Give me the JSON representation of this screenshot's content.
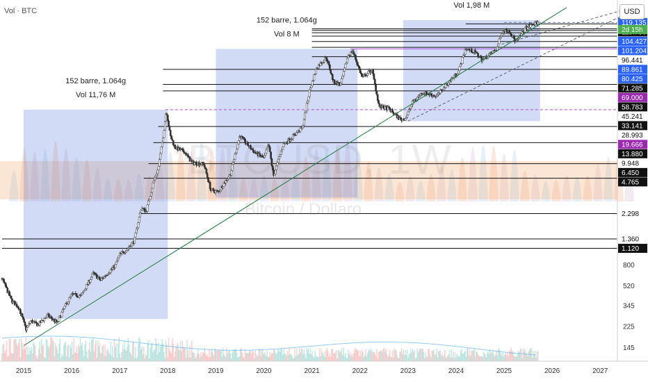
{
  "header": {
    "indicator_label": "Vol · BTC",
    "currency_button": "USD"
  },
  "watermark": {
    "symbol": "BTCUSD, 1W",
    "name": "Bitcoin / Dollaro"
  },
  "colors": {
    "up": "#26a69a",
    "down": "#ef5350",
    "range_box": "#5b7fe0",
    "trendline": "#1e7a3c",
    "magenta": "#b04fd6",
    "price_blue": "#2962ff",
    "price_purple": "#9c27b0",
    "countdown_green": "#4caf50"
  },
  "chart_data": {
    "type": "candlestick",
    "title": "BTCUSD, 1W",
    "subtitle": "Bitcoin / Dollaro",
    "timeframe": "1W",
    "x_range": [
      2014.55,
      2027.5
    ],
    "y_scale": "log",
    "y_range": [
      110,
      160000
    ],
    "x_tick_labels": [
      "2015",
      "2016",
      "2017",
      "2018",
      "2019",
      "2020",
      "2021",
      "2022",
      "2023",
      "2024",
      "2025",
      "2026",
      "2027"
    ],
    "y_tick_labels": [
      {
        "label": "800",
        "value": 800
      },
      {
        "label": "520",
        "value": 520
      },
      {
        "label": "345",
        "value": 345
      },
      {
        "label": "225",
        "value": 225
      },
      {
        "label": "145",
        "value": 145
      }
    ],
    "price_path": [
      [
        2014.55,
        600
      ],
      [
        2014.75,
        380
      ],
      [
        2014.9,
        330
      ],
      [
        2015.05,
        210
      ],
      [
        2015.15,
        250
      ],
      [
        2015.3,
        230
      ],
      [
        2015.5,
        280
      ],
      [
        2015.7,
        240
      ],
      [
        2015.85,
        330
      ],
      [
        2016.0,
        430
      ],
      [
        2016.2,
        420
      ],
      [
        2016.45,
        670
      ],
      [
        2016.6,
        580
      ],
      [
        2016.9,
        780
      ],
      [
        2017.0,
        980
      ],
      [
        2017.15,
        1100
      ],
      [
        2017.3,
        1300
      ],
      [
        2017.45,
        2600
      ],
      [
        2017.55,
        2400
      ],
      [
        2017.7,
        4400
      ],
      [
        2017.8,
        5800
      ],
      [
        2017.9,
        11000
      ],
      [
        2017.97,
        19600
      ],
      [
        2018.05,
        11500
      ],
      [
        2018.15,
        9000
      ],
      [
        2018.35,
        8200
      ],
      [
        2018.5,
        6600
      ],
      [
        2018.75,
        6400
      ],
      [
        2018.9,
        3700
      ],
      [
        2019.05,
        3600
      ],
      [
        2019.3,
        5200
      ],
      [
        2019.5,
        11500
      ],
      [
        2019.6,
        10200
      ],
      [
        2019.8,
        8200
      ],
      [
        2020.0,
        7200
      ],
      [
        2020.1,
        9500
      ],
      [
        2020.2,
        5000
      ],
      [
        2020.4,
        9500
      ],
      [
        2020.6,
        11300
      ],
      [
        2020.8,
        13500
      ],
      [
        2020.95,
        28900
      ],
      [
        2021.1,
        47000
      ],
      [
        2021.3,
        58000
      ],
      [
        2021.45,
        35000
      ],
      [
        2021.6,
        33000
      ],
      [
        2021.75,
        60000
      ],
      [
        2021.85,
        66000
      ],
      [
        2022.05,
        38000
      ],
      [
        2022.25,
        45000
      ],
      [
        2022.4,
        21000
      ],
      [
        2022.6,
        20000
      ],
      [
        2022.85,
        16000
      ],
      [
        2022.95,
        16500
      ],
      [
        2023.1,
        23000
      ],
      [
        2023.3,
        28000
      ],
      [
        2023.6,
        26000
      ],
      [
        2023.85,
        35000
      ],
      [
        2024.05,
        43000
      ],
      [
        2024.2,
        70000
      ],
      [
        2024.4,
        64000
      ],
      [
        2024.55,
        55000
      ],
      [
        2024.85,
        69000
      ],
      [
        2024.95,
        98000
      ],
      [
        2025.1,
        102000
      ],
      [
        2025.25,
        79000
      ],
      [
        2025.45,
        106000
      ],
      [
        2025.6,
        115000
      ],
      [
        2025.72,
        119000
      ]
    ],
    "volume_profile_visible": true,
    "range_boxes": [
      {
        "x_start": 2015.0,
        "x_end": 2018.0,
        "y_low": 260,
        "y_high": 19666,
        "label_bars": "152 barre, 1.064g",
        "label_volume": "Vol 11,76 M"
      },
      {
        "x_start": 2019.0,
        "x_end": 2021.95,
        "y_low": 3200,
        "y_high": 69000,
        "label_bars": "152 barre, 1.064g",
        "label_volume": "Vol 8 M"
      },
      {
        "x_start": 2022.9,
        "x_end": 2025.75,
        "y_low": 15500,
        "y_high": 125000,
        "label_bars": "152 barre, 1.064g",
        "label_volume": "Vol 1,98 M"
      }
    ],
    "trendlines": [
      {
        "from": [
          2015.0,
          150
        ],
        "to": [
          2026.3,
          162000
        ],
        "style": "solid"
      },
      {
        "from": [
          2023.0,
          15500
        ],
        "to": [
          2027.5,
          140000
        ],
        "style": "dashed"
      },
      {
        "from": [
          2024.95,
          76000
        ],
        "to": [
          2027.5,
          155000
        ],
        "style": "dashed"
      }
    ],
    "horizontal_levels": [
      {
        "value": 119135,
        "label": "119.135",
        "style": "dashed",
        "x_start": 2025.0,
        "tag": "blue"
      },
      {
        "value": 115750,
        "label": "115.750",
        "style": "solid",
        "x_start": 2024.2,
        "tag": "black"
      },
      {
        "value": 104427,
        "label": "104.427",
        "style": "solid",
        "x_start": 2021.0,
        "tag": "blue"
      },
      {
        "value": 101204,
        "label": "101.204",
        "style": "solid",
        "x_start": 2021.0,
        "tag": "blue"
      },
      {
        "value": 96441,
        "label": "96.441",
        "style": "solid",
        "x_start": 2021.0,
        "tag": "white"
      },
      {
        "value": 89861,
        "label": "89.861",
        "style": "solid",
        "x_start": 2021.0,
        "tag": "blue"
      },
      {
        "value": 80425,
        "label": "80.425",
        "style": "solid",
        "x_start": 2021.0,
        "tag": "blue"
      },
      {
        "value": 71285,
        "label": "71.285",
        "style": "solid",
        "x_start": 2021.0,
        "tag": "black"
      },
      {
        "value": 69000,
        "label": "69.000",
        "style": "solid",
        "x_start": 2021.8,
        "tag": "purple",
        "color": "magenta"
      },
      {
        "value": 58783,
        "label": "58.783",
        "style": "solid",
        "x_start": 2021.0,
        "tag": "black"
      },
      {
        "value": 45241,
        "label": "45.241",
        "style": "solid",
        "x_start": 2017.9,
        "tag": "white"
      },
      {
        "value": 33141,
        "label": "33.141",
        "style": "solid",
        "x_start": 2017.9,
        "tag": "black"
      },
      {
        "value": 28993,
        "label": "28.993",
        "style": "solid",
        "x_start": 2017.9,
        "tag": "white"
      },
      {
        "value": 19666,
        "label": "19.666",
        "style": "dashed",
        "x_start": 2017.95,
        "tag": "purple",
        "color": "magenta"
      },
      {
        "value": 13880,
        "label": "13.880",
        "style": "solid",
        "x_start": 2017.8,
        "tag": "black"
      },
      {
        "value": 9948,
        "label": "9.948",
        "style": "solid",
        "x_start": 2017.7,
        "tag": "white"
      },
      {
        "value": 6450,
        "label": "6.450",
        "style": "solid",
        "x_start": 2017.6,
        "tag": "black"
      },
      {
        "value": 4765,
        "label": "4.765",
        "style": "solid",
        "x_start": 2017.5,
        "tag": "black"
      },
      {
        "value": 2298,
        "label": "2.298",
        "style": "solid",
        "x_start": 2017.4,
        "tag": "white"
      },
      {
        "value": 1360,
        "label": "1.360",
        "style": "solid",
        "x_start": 2014.55,
        "tag": "white"
      },
      {
        "value": 1120,
        "label": "1.120",
        "style": "solid",
        "x_start": 2014.55,
        "tag": "black"
      }
    ],
    "countdown": {
      "label": "2d 15h",
      "value": 124500
    }
  }
}
